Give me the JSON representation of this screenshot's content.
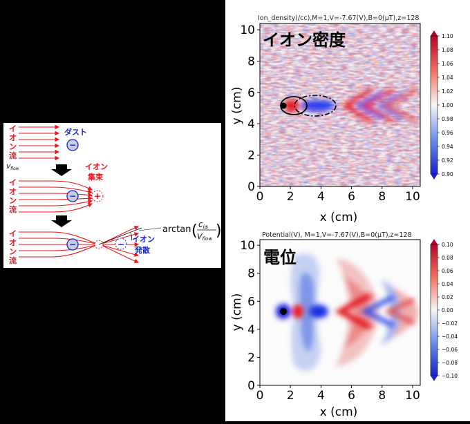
{
  "schematic": {
    "ion_flow_text": "イオン流",
    "vflow_label": "V",
    "vflow_sub": "flow",
    "dust_label": "ダスト",
    "focus_label": "イオン集束",
    "scatter_label": "イオン発散",
    "minus_sign": "−",
    "plus_sign": "+",
    "arctan_text": "arctan",
    "c_ia": "c",
    "c_ia_sub": "ia",
    "v_flow_den": "V",
    "v_flow_den_sub": "flow",
    "colors": {
      "ion": "#e8141c",
      "dust_text": "#1a22c8",
      "dust_fill": "#c7cdd9",
      "arrow": "#000000"
    }
  },
  "plots": [
    {
      "title": "Ion_density(/cc),M=1,V=-7.67(V),B=0(μT),z=128",
      "jp_label": "イオン密度",
      "xlabel": "x (cm)",
      "ylabel": "y (cm)",
      "x_ticks": [
        "0",
        "2",
        "4",
        "6",
        "8",
        "10"
      ],
      "y_ticks": [
        "0",
        "2",
        "4",
        "6",
        "8",
        "10"
      ],
      "colorbar_ticks": [
        "1.10",
        "1.08",
        "1.06",
        "1.04",
        "1.02",
        "1.00",
        "0.98",
        "0.96",
        "0.94",
        "0.92",
        "0.90"
      ],
      "colormap": "bwr"
    },
    {
      "title": "Potential(V), M=1,V=-7.67(V),B=0(μT),z=128",
      "jp_label": "電位",
      "xlabel": "x (cm)",
      "ylabel": "y (cm)",
      "x_ticks": [
        "0",
        "2",
        "4",
        "6",
        "8",
        "10"
      ],
      "y_ticks": [
        "0",
        "2",
        "4",
        "6",
        "8",
        "10"
      ],
      "colorbar_ticks": [
        "0.10",
        "0.08",
        "0.06",
        "0.04",
        "0.02",
        "0.00",
        "−0.02",
        "−0.04",
        "−0.06",
        "−0.08",
        "−0.10"
      ],
      "colormap": "bwr"
    }
  ]
}
